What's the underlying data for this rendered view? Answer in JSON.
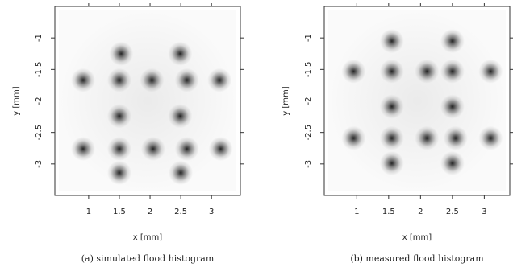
{
  "chart_data": [
    {
      "type": "scatter",
      "caption": "(a) simulated flood histogram",
      "xlabel": "x [mm]",
      "ylabel": "y [mm]",
      "color": "#000000",
      "x": [
        1.53,
        2.49,
        0.91,
        1.5,
        2.03,
        2.6,
        3.13,
        1.5,
        2.49,
        0.91,
        1.5,
        2.05,
        2.6,
        3.15,
        1.5,
        2.5
      ],
      "y": [
        -1.25,
        -1.25,
        -1.67,
        -1.67,
        -1.67,
        -1.67,
        -1.67,
        -2.24,
        -2.24,
        -2.76,
        -2.76,
        -2.76,
        -2.76,
        -2.76,
        -3.14,
        -3.14
      ],
      "xlim": [
        0.45,
        3.47
      ],
      "ylim": [
        -3.5,
        -0.5
      ],
      "xticks": [
        1,
        1.5,
        2,
        2.5,
        3
      ],
      "yticks": [
        -1,
        -1.5,
        -2,
        -2.5,
        -3
      ]
    },
    {
      "type": "scatter",
      "caption": "(b) measured flood histogram",
      "xlabel": "x [mm]",
      "ylabel": "y [mm]",
      "color": "#000000",
      "x": [
        1.55,
        2.5,
        0.95,
        1.55,
        2.1,
        2.5,
        3.1,
        1.55,
        2.5,
        0.95,
        1.55,
        2.1,
        2.55,
        3.1,
        1.55,
        2.5
      ],
      "y": [
        -1.05,
        -1.05,
        -1.53,
        -1.53,
        -1.53,
        -1.53,
        -1.53,
        -2.09,
        -2.09,
        -2.59,
        -2.59,
        -2.59,
        -2.59,
        -2.59,
        -2.99,
        -2.99
      ],
      "xlim": [
        0.49,
        3.4
      ],
      "ylim": [
        -3.5,
        -0.5
      ],
      "xticks": [
        1,
        1.5,
        2,
        2.5,
        3
      ],
      "yticks": [
        -1,
        -1.5,
        -2,
        -2.5,
        -3
      ]
    }
  ]
}
